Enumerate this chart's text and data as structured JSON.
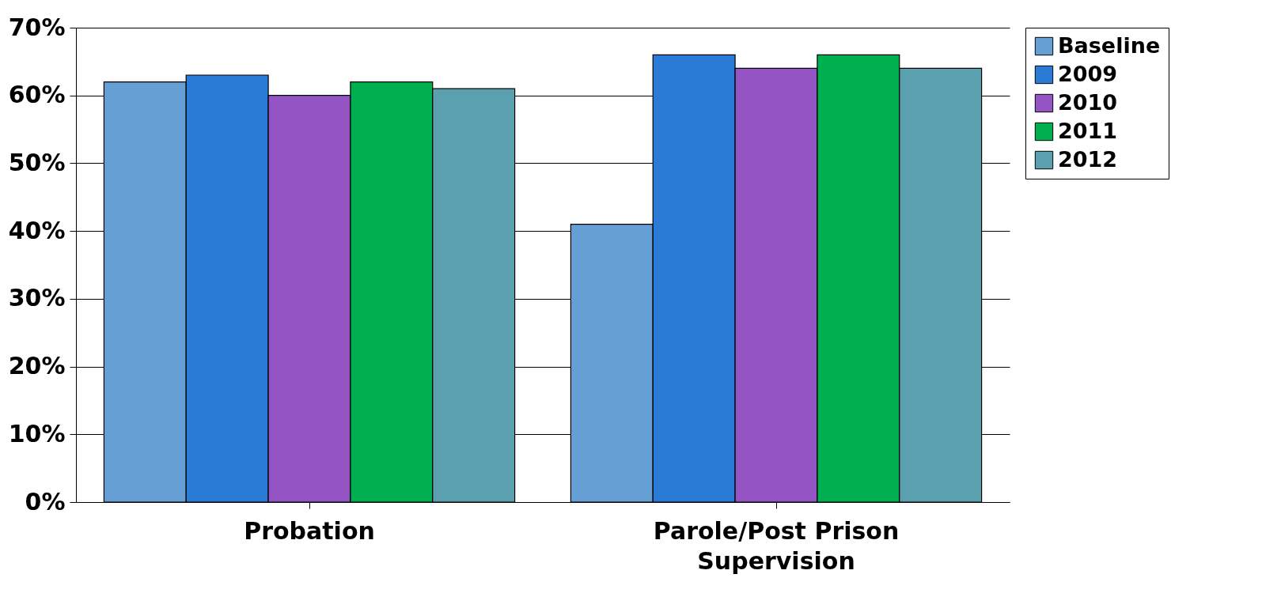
{
  "chart_data": {
    "type": "bar",
    "categories": [
      "Probation",
      "Parole/Post Prison Supervision"
    ],
    "series": [
      {
        "name": "Baseline",
        "color": "#659fd3",
        "values": [
          62,
          41
        ]
      },
      {
        "name": "2009",
        "color": "#2a7bd6",
        "values": [
          63,
          66
        ]
      },
      {
        "name": "2010",
        "color": "#9454c4",
        "values": [
          60,
          64
        ]
      },
      {
        "name": "2011",
        "color": "#00b050",
        "values": [
          62,
          66
        ]
      },
      {
        "name": "2012",
        "color": "#5aa0ae",
        "values": [
          61,
          64
        ]
      }
    ],
    "ylim": [
      0,
      70
    ],
    "yticks": [
      {
        "value": 0,
        "label": "0%"
      },
      {
        "value": 10,
        "label": "10%"
      },
      {
        "value": 20,
        "label": "20%"
      },
      {
        "value": 30,
        "label": "30%"
      },
      {
        "value": 40,
        "label": "40%"
      },
      {
        "value": 50,
        "label": "50%"
      },
      {
        "value": 60,
        "label": "60%"
      },
      {
        "value": 70,
        "label": "70%"
      }
    ],
    "grid": "y",
    "legend": "right"
  }
}
